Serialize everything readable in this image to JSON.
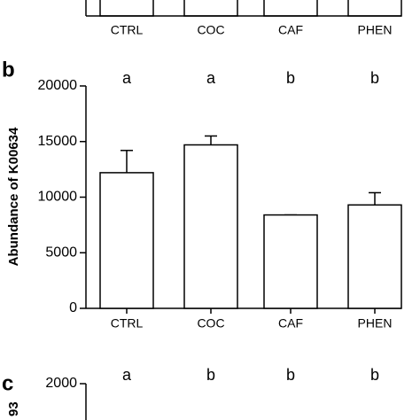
{
  "chart_data": [
    {
      "type": "bar",
      "categories": [
        "CTRL",
        "COC",
        "CAF",
        "PHEN"
      ]
    },
    {
      "type": "bar",
      "panel": "b",
      "y_label": "Abundance of K00634",
      "categories": [
        "CTRL",
        "COC",
        "CAF",
        "PHEN"
      ],
      "values": [
        12200,
        14700,
        8400,
        9300
      ],
      "errors": [
        2000,
        800,
        0,
        1100
      ],
      "annotations": [
        "a",
        "a",
        "b",
        "b"
      ],
      "color": "#ffffff",
      "ylim": [
        0,
        20000
      ],
      "yticks": [
        0,
        5000,
        10000,
        15000,
        20000
      ]
    },
    {
      "type": "bar",
      "panel": "c",
      "y_label": "93",
      "annotations": [
        "a",
        "b",
        "b",
        "b"
      ],
      "yticks": [
        2000
      ]
    }
  ]
}
